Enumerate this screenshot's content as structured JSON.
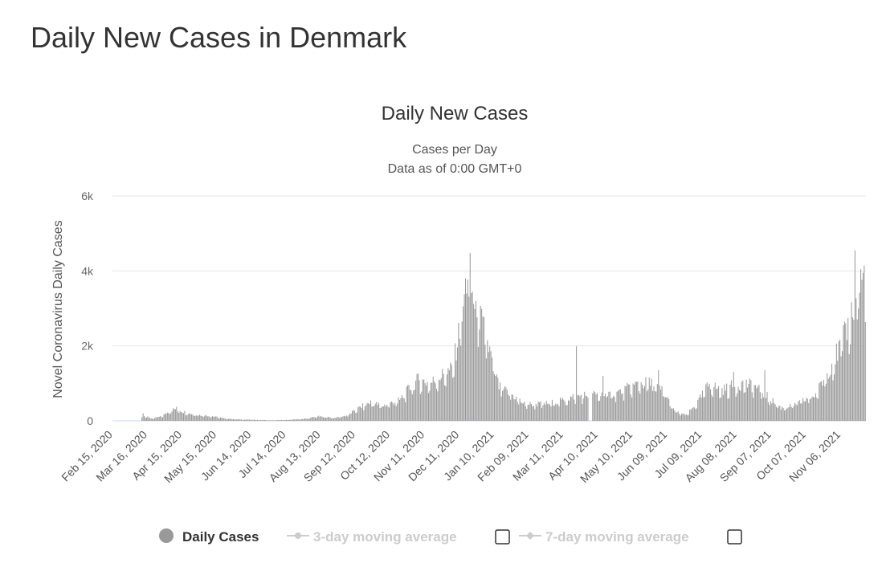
{
  "page": {
    "title": "Daily New Cases in Denmark"
  },
  "chart_data": {
    "type": "bar",
    "title": "Daily New Cases",
    "subtitle": [
      "Cases per Day",
      "Data as of 0:00 GMT+0"
    ],
    "xlabel": "",
    "ylabel": "Novel Coronavirus Daily Cases",
    "ylim": [
      0,
      6000
    ],
    "y_ticks": [
      0,
      2000,
      4000,
      6000
    ],
    "y_tick_labels": [
      "0",
      "2k",
      "4k",
      "6k"
    ],
    "x_start": "2020-02-15",
    "x_end": "2021-11-27",
    "x_tick_labels": [
      "Feb 15, 2020",
      "Mar 16, 2020",
      "Apr 15, 2020",
      "May 15, 2020",
      "Jun 14, 2020",
      "Jul 14, 2020",
      "Aug 13, 2020",
      "Sep 12, 2020",
      "Oct 12, 2020",
      "Nov 11, 2020",
      "Dec 11, 2020",
      "Jan 10, 2021",
      "Feb 09, 2021",
      "Mar 11, 2021",
      "Apr 10, 2021",
      "May 10, 2021",
      "Jun 09, 2021",
      "Jul 09, 2021",
      "Aug 08, 2021",
      "Sep 07, 2021",
      "Oct 07, 2021",
      "Nov 06, 2021"
    ],
    "grid": true,
    "legend_position": "bottom",
    "series": [
      {
        "name": "Daily Cases",
        "color": "#999999",
        "visible": true,
        "keyframes": [
          [
            "2020-02-15",
            0
          ],
          [
            "2020-03-10",
            5
          ],
          [
            "2020-03-12",
            200
          ],
          [
            "2020-03-14",
            120
          ],
          [
            "2020-03-20",
            60
          ],
          [
            "2020-03-28",
            120
          ],
          [
            "2020-04-05",
            280
          ],
          [
            "2020-04-10",
            330
          ],
          [
            "2020-04-15",
            250
          ],
          [
            "2020-04-25",
            170
          ],
          [
            "2020-05-10",
            130
          ],
          [
            "2020-05-20",
            70
          ],
          [
            "2020-06-01",
            40
          ],
          [
            "2020-06-15",
            30
          ],
          [
            "2020-07-01",
            15
          ],
          [
            "2020-07-15",
            25
          ],
          [
            "2020-08-01",
            60
          ],
          [
            "2020-08-10",
            120
          ],
          [
            "2020-08-25",
            80
          ],
          [
            "2020-09-05",
            150
          ],
          [
            "2020-09-15",
            350
          ],
          [
            "2020-09-25",
            500
          ],
          [
            "2020-10-05",
            400
          ],
          [
            "2020-10-20",
            550
          ],
          [
            "2020-10-28",
            850
          ],
          [
            "2020-11-05",
            1100
          ],
          [
            "2020-11-15",
            1000
          ],
          [
            "2020-11-25",
            1200
          ],
          [
            "2020-12-05",
            1400
          ],
          [
            "2020-12-10",
            2300
          ],
          [
            "2020-12-15",
            3300
          ],
          [
            "2020-12-18",
            4000
          ],
          [
            "2020-12-22",
            3300
          ],
          [
            "2020-12-28",
            2800
          ],
          [
            "2021-01-03",
            2200
          ],
          [
            "2021-01-08",
            1600
          ],
          [
            "2021-01-14",
            900
          ],
          [
            "2021-01-25",
            700
          ],
          [
            "2021-02-05",
            450
          ],
          [
            "2021-02-20",
            450
          ],
          [
            "2021-03-05",
            500
          ],
          [
            "2021-03-20",
            650
          ],
          [
            "2021-04-02",
            700
          ],
          [
            "2021-04-10",
            700
          ],
          [
            "2021-04-20",
            700
          ],
          [
            "2021-05-01",
            800
          ],
          [
            "2021-05-15",
            1000
          ],
          [
            "2021-05-25",
            1000
          ],
          [
            "2021-06-05",
            800
          ],
          [
            "2021-06-15",
            250
          ],
          [
            "2021-06-25",
            150
          ],
          [
            "2021-07-05",
            500
          ],
          [
            "2021-07-15",
            1000
          ],
          [
            "2021-07-25",
            800
          ],
          [
            "2021-08-05",
            950
          ],
          [
            "2021-08-15",
            1000
          ],
          [
            "2021-08-25",
            900
          ],
          [
            "2021-09-05",
            600
          ],
          [
            "2021-09-15",
            350
          ],
          [
            "2021-09-25",
            400
          ],
          [
            "2021-10-05",
            550
          ],
          [
            "2021-10-15",
            700
          ],
          [
            "2021-10-22",
            1100
          ],
          [
            "2021-10-30",
            1600
          ],
          [
            "2021-11-06",
            2000
          ],
          [
            "2021-11-12",
            2500
          ],
          [
            "2021-11-20",
            3500
          ],
          [
            "2021-11-27",
            3950
          ]
        ],
        "spikes": [
          [
            "2020-12-20",
            4480
          ],
          [
            "2021-03-22",
            1990
          ],
          [
            "2021-04-14",
            1200
          ],
          [
            "2021-11-18",
            4550
          ],
          [
            "2021-11-10",
            2600
          ],
          [
            "2021-06-01",
            1350
          ],
          [
            "2021-09-01",
            1350
          ],
          [
            "2021-08-05",
            1300
          ]
        ],
        "gaps": [
          [
            "2021-04-02",
            "2021-04-04"
          ]
        ]
      },
      {
        "name": "3-day moving average",
        "visible": false,
        "color": "#cccccc"
      },
      {
        "name": "7-day moving average",
        "visible": false,
        "color": "#cccccc"
      }
    ]
  }
}
